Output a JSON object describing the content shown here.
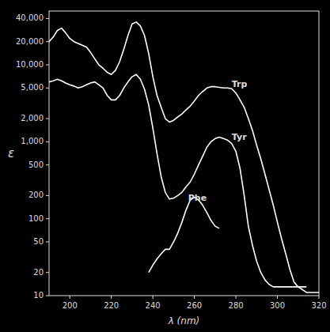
{
  "chart_data": {
    "type": "line",
    "xlabel": "λ (nm)",
    "ylabel": "ε",
    "log": "y",
    "grid": false,
    "xlim": [
      190,
      320
    ],
    "ylim": [
      10,
      50000
    ],
    "xticks": [
      200,
      220,
      240,
      260,
      280,
      300,
      320
    ],
    "yticks": [
      10,
      20,
      50,
      100,
      200,
      500,
      {
        "value": 1000,
        "label": "1,000"
      },
      {
        "value": 2000,
        "label": "2,000"
      },
      {
        "value": 5000,
        "label": "5,000"
      },
      {
        "value": 10000,
        "label": "10,000"
      },
      {
        "value": 20000,
        "label": "20,000"
      },
      {
        "value": 40000,
        "label": "40,000"
      }
    ],
    "annotations": [
      {
        "text": "Trp",
        "x": 278,
        "y": 5200
      },
      {
        "text": "Tyr",
        "x": 278,
        "y": 1050
      },
      {
        "text": "Phe",
        "x": 257,
        "y": 170
      }
    ],
    "series": [
      {
        "color": "#ffffff",
        "x": [
          190,
          192,
          194,
          196,
          198,
          200,
          202,
          204,
          206,
          208,
          210,
          212,
          214,
          216,
          218,
          220,
          222,
          224,
          226,
          228,
          230,
          232,
          234,
          236,
          238,
          240,
          242,
          244,
          246,
          248,
          250,
          252,
          254,
          256,
          258,
          260,
          262,
          264,
          266,
          268,
          270,
          272,
          274,
          276,
          278,
          280,
          282,
          284,
          286,
          288,
          290,
          292,
          294,
          296,
          298,
          300,
          302,
          304,
          306,
          308,
          310,
          312,
          314,
          316,
          318,
          320
        ],
        "values": [
          20000,
          23000,
          28000,
          30000,
          26000,
          22000,
          20000,
          19000,
          18000,
          17000,
          14500,
          12000,
          10000,
          9000,
          8000,
          7500,
          8500,
          11000,
          16000,
          24000,
          34000,
          36000,
          32000,
          24000,
          14000,
          7000,
          4000,
          2800,
          2000,
          1800,
          1900,
          2100,
          2300,
          2600,
          2900,
          3400,
          4000,
          4500,
          5000,
          5200,
          5200,
          5100,
          5000,
          5000,
          4900,
          4300,
          3500,
          2800,
          2000,
          1400,
          900,
          600,
          380,
          240,
          150,
          90,
          55,
          35,
          22,
          15,
          13,
          12,
          11,
          11,
          11,
          11
        ]
      },
      {
        "color": "#ffffff",
        "x": [
          190,
          192,
          194,
          196,
          198,
          200,
          202,
          204,
          206,
          208,
          210,
          212,
          214,
          216,
          218,
          220,
          222,
          224,
          226,
          228,
          230,
          232,
          234,
          236,
          238,
          240,
          242,
          244,
          246,
          248,
          250,
          252,
          254,
          256,
          258,
          260,
          262,
          264,
          266,
          268,
          270,
          272,
          274,
          276,
          278,
          280,
          282,
          284,
          286,
          288,
          290,
          292,
          294,
          296,
          298,
          300,
          302,
          304,
          306,
          308,
          310,
          312,
          314
        ],
        "values": [
          6000,
          6200,
          6500,
          6200,
          5800,
          5500,
          5300,
          5000,
          5200,
          5500,
          5800,
          6000,
          5500,
          5000,
          4000,
          3500,
          3500,
          4000,
          5000,
          6000,
          7000,
          7500,
          6500,
          4800,
          3000,
          1500,
          700,
          350,
          220,
          180,
          185,
          200,
          220,
          260,
          300,
          380,
          500,
          650,
          850,
          1000,
          1100,
          1150,
          1100,
          1050,
          950,
          750,
          450,
          200,
          80,
          45,
          28,
          20,
          16,
          14,
          13,
          13,
          13,
          13,
          13,
          13,
          13,
          13,
          13
        ]
      },
      {
        "color": "#ffffff",
        "x": [
          238,
          240,
          242,
          244,
          246,
          248,
          250,
          252,
          254,
          256,
          258,
          260,
          262,
          264,
          266,
          268,
          270,
          272
        ],
        "values": [
          20,
          25,
          30,
          35,
          40,
          40,
          50,
          65,
          90,
          130,
          175,
          190,
          175,
          150,
          120,
          95,
          80,
          75
        ]
      }
    ]
  }
}
